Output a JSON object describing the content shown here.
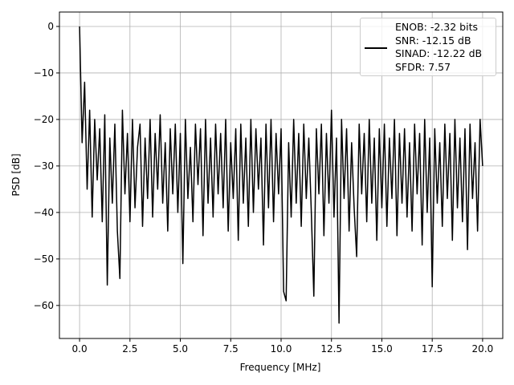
{
  "chart_data": {
    "type": "line",
    "xlabel": "Frequency [MHz]",
    "ylabel": "PSD [dB]",
    "xlim": [
      -1,
      21
    ],
    "ylim": [
      -67.1,
      3.1
    ],
    "xticks": [
      {
        "value": 0,
        "label": "0.0"
      },
      {
        "value": 2.5,
        "label": "2.5"
      },
      {
        "value": 5,
        "label": "5.0"
      },
      {
        "value": 7.5,
        "label": "7.5"
      },
      {
        "value": 10,
        "label": "10.0"
      },
      {
        "value": 12.5,
        "label": "12.5"
      },
      {
        "value": 15,
        "label": "15.0"
      },
      {
        "value": 17.5,
        "label": "17.5"
      },
      {
        "value": 20,
        "label": "20.0"
      }
    ],
    "yticks": [
      0,
      {
        "value": -10,
        "label": "−10"
      },
      {
        "value": -20,
        "label": "−20"
      },
      {
        "value": -30,
        "label": "−30"
      },
      {
        "value": -40,
        "label": "−40"
      },
      {
        "value": -50,
        "label": "−50"
      },
      {
        "value": -60,
        "label": "−60"
      }
    ],
    "grid": true,
    "legend_position": "upper right",
    "x": [
      0,
      0.125,
      0.25,
      0.375,
      0.5,
      0.625,
      0.75,
      0.875,
      1,
      1.125,
      1.25,
      1.375,
      1.5,
      1.625,
      1.75,
      1.875,
      2,
      2.125,
      2.25,
      2.375,
      2.5,
      2.625,
      2.75,
      2.875,
      3,
      3.125,
      3.25,
      3.375,
      3.5,
      3.625,
      3.75,
      3.875,
      4,
      4.125,
      4.25,
      4.375,
      4.5,
      4.625,
      4.75,
      4.875,
      5,
      5.125,
      5.25,
      5.375,
      5.5,
      5.625,
      5.75,
      5.875,
      6,
      6.125,
      6.25,
      6.375,
      6.5,
      6.625,
      6.75,
      6.875,
      7,
      7.125,
      7.25,
      7.375,
      7.5,
      7.625,
      7.75,
      7.875,
      8,
      8.125,
      8.25,
      8.375,
      8.5,
      8.625,
      8.75,
      8.875,
      9,
      9.125,
      9.25,
      9.375,
      9.5,
      9.625,
      9.75,
      9.875,
      10,
      10.125,
      10.25,
      10.375,
      10.5,
      10.625,
      10.75,
      10.875,
      11,
      11.125,
      11.25,
      11.375,
      11.5,
      11.625,
      11.75,
      11.875,
      12,
      12.125,
      12.25,
      12.375,
      12.5,
      12.625,
      12.75,
      12.875,
      13,
      13.125,
      13.25,
      13.375,
      13.5,
      13.625,
      13.75,
      13.875,
      14,
      14.125,
      14.25,
      14.375,
      14.5,
      14.625,
      14.75,
      14.875,
      15,
      15.125,
      15.25,
      15.375,
      15.5,
      15.625,
      15.75,
      15.875,
      16,
      16.125,
      16.25,
      16.375,
      16.5,
      16.625,
      16.75,
      16.875,
      17,
      17.125,
      17.25,
      17.375,
      17.5,
      17.625,
      17.75,
      17.875,
      18,
      18.125,
      18.25,
      18.375,
      18.5,
      18.625,
      18.75,
      18.875,
      19,
      19.125,
      19.25,
      19.375,
      19.5,
      19.625,
      19.75,
      19.875,
      20
    ],
    "series": [
      {
        "name": "ENOB: -2.32 bits\nSNR: -12.15 dB\nSINAD: -12.22 dB\nSFDR: 7.57",
        "color": "#000000",
        "values": [
          0,
          -25,
          -12,
          -35,
          -18,
          -41,
          -20,
          -33,
          -22,
          -42,
          -19,
          -55.6,
          -24,
          -38,
          -21,
          -44,
          -54.2,
          -18,
          -36,
          -23,
          -42,
          -20,
          -39,
          -26,
          -21,
          -43,
          -24,
          -37,
          -20,
          -41,
          -23,
          -35,
          -19,
          -38,
          -25,
          -44,
          -22,
          -36,
          -21,
          -40,
          -23,
          -51,
          -20,
          -37,
          -26,
          -42,
          -21,
          -34,
          -22,
          -45,
          -20,
          -38,
          -24,
          -41,
          -21,
          -36,
          -23,
          -39,
          -20,
          -44,
          -25,
          -37,
          -22,
          -46,
          -21,
          -38,
          -24,
          -43,
          -20,
          -40,
          -22,
          -35,
          -24,
          -47,
          -21,
          -39,
          -20,
          -42,
          -23,
          -36,
          -22,
          -57,
          -59,
          -25,
          -41,
          -20,
          -38,
          -23,
          -43,
          -21,
          -37,
          -24,
          -40,
          -58,
          -22,
          -36,
          -21,
          -45,
          -23,
          -38,
          -18,
          -41,
          -24,
          -63.8,
          -20,
          -37,
          -22,
          -44,
          -25,
          -39,
          -49.5,
          -21,
          -36,
          -23,
          -42,
          -20,
          -38,
          -24,
          -46,
          -22,
          -39,
          -21,
          -43,
          -24,
          -37,
          -20,
          -45,
          -23,
          -38,
          -22,
          -41,
          -25,
          -44,
          -21,
          -36,
          -23,
          -47,
          -20,
          -40,
          -24,
          -56,
          -22,
          -38,
          -25,
          -43,
          -21,
          -37,
          -23,
          -46,
          -20,
          -39,
          -24,
          -42,
          -22,
          -48,
          -21,
          -37,
          -25,
          -44,
          -20,
          -30
        ]
      }
    ]
  }
}
